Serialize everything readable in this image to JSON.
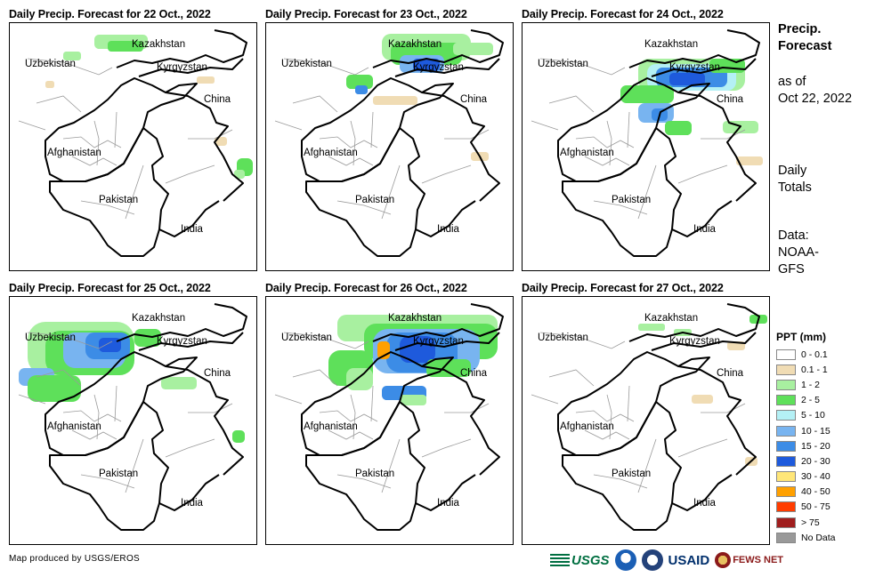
{
  "panels": [
    {
      "title": "Daily Precip. Forecast for 22 Oct., 2022",
      "day": "22 Oct., 2022"
    },
    {
      "title": "Daily Precip. Forecast for 23 Oct., 2022",
      "day": "23 Oct., 2022"
    },
    {
      "title": "Daily Precip. Forecast for 24 Oct., 2022",
      "day": "24 Oct., 2022"
    },
    {
      "title": "Daily Precip. Forecast for 25 Oct., 2022",
      "day": "25 Oct., 2022"
    },
    {
      "title": "Daily Precip. Forecast for 26 Oct., 2022",
      "day": "26 Oct., 2022"
    },
    {
      "title": "Daily Precip. Forecast for 27 Oct., 2022",
      "day": "27 Oct., 2022"
    }
  ],
  "map_labels": {
    "kazakhstan": "Kazakhstan",
    "uzbekistan": "Uzbekistan",
    "kyrgyzstan": "Kyrgyzstan",
    "china": "China",
    "afghanistan": "Afghanistan",
    "pakistan": "Pakistan",
    "india": "India"
  },
  "side": {
    "title": "Precip. Forecast",
    "asof_line1": "as of",
    "asof_line2": "Oct 22, 2022",
    "daily": "Daily Totals",
    "data": "Data: NOAA-GFS"
  },
  "legend": {
    "title": "PPT (mm)",
    "items": [
      {
        "label": "0 - 0.1",
        "color": "#ffffff"
      },
      {
        "label": "0.1 - 1",
        "color": "#f0dcb4"
      },
      {
        "label": "1 - 2",
        "color": "#a8f0a0"
      },
      {
        "label": "2 - 5",
        "color": "#5ee05a"
      },
      {
        "label": "5 - 10",
        "color": "#b4f0f5"
      },
      {
        "label": "10 - 15",
        "color": "#78b4f0"
      },
      {
        "label": "15 - 20",
        "color": "#3c8ce6"
      },
      {
        "label": "20 - 30",
        "color": "#1e5adc"
      },
      {
        "label": "30 - 40",
        "color": "#ffe678"
      },
      {
        "label": "40 - 50",
        "color": "#ffa000"
      },
      {
        "label": "50 - 75",
        "color": "#ff3c00"
      },
      {
        "label": "> 75",
        "color": "#a01e1e"
      },
      {
        "label": "No Data",
        "color": "#999999"
      }
    ]
  },
  "credit": "Map produced by USGS/EROS",
  "logos": {
    "usgs": "USGS",
    "usaid": "USAID",
    "fews": "FEWS NET"
  }
}
